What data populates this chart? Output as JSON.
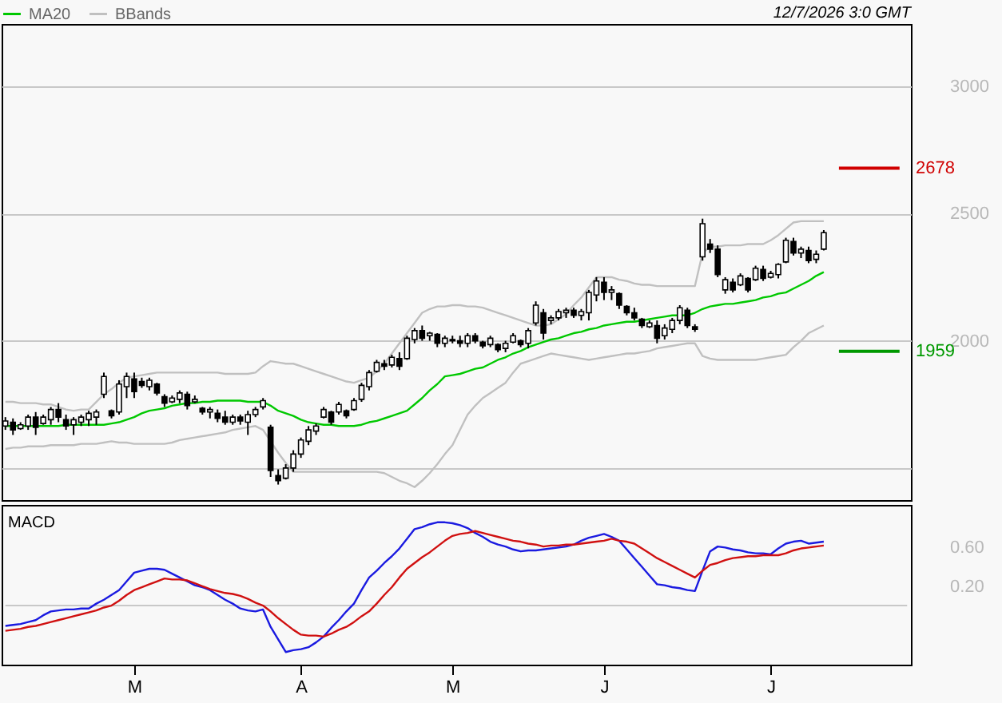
{
  "chart_data": [
    {
      "type": "candlestick",
      "legend": "top left",
      "grid": "y",
      "tick_labels": "y",
      "annotations": [
        "12/7/2026 3:0 GMT"
      ],
      "categories": [
        null,
        null,
        null,
        null,
        null,
        null,
        null,
        null,
        null,
        null,
        null,
        null,
        null,
        null,
        null,
        null,
        null,
        null,
        null,
        null,
        null,
        null,
        null,
        null,
        null,
        null,
        null,
        null,
        null,
        null,
        null,
        null,
        null,
        null,
        null,
        null,
        null,
        null,
        null,
        null,
        null,
        null,
        null,
        null,
        null,
        null,
        null,
        null,
        null,
        null,
        null,
        null,
        null,
        null,
        null,
        null,
        null,
        null,
        null,
        null,
        null,
        null,
        null,
        null,
        null,
        null,
        null,
        null,
        null,
        null,
        null,
        null,
        null,
        null,
        null,
        null,
        null,
        null,
        null,
        null,
        null,
        null,
        null,
        null,
        null,
        null,
        null,
        null,
        null,
        null,
        null,
        null,
        null,
        null,
        null,
        null,
        null,
        null,
        null,
        null,
        null,
        null,
        null,
        null,
        null,
        null,
        null,
        null,
        null,
        null,
        null,
        null,
        null,
        null,
        null,
        null,
        null,
        null,
        null,
        null
      ],
      "ylim": [
        1374,
        3245
      ],
      "yticks": [
        {
          "value": 1500,
          "label": null
        },
        2000,
        2500,
        3000
      ],
      "ohlc": [
        [
          1665,
          1700,
          1650,
          1685
        ],
        [
          1680,
          1695,
          1630,
          1650
        ],
        [
          1655,
          1680,
          1650,
          1670
        ],
        [
          1665,
          1710,
          1650,
          1700
        ],
        [
          1700,
          1720,
          1630,
          1660
        ],
        [
          1675,
          1710,
          1670,
          1700
        ],
        [
          1690,
          1740,
          1670,
          1730
        ],
        [
          1730,
          1755,
          1680,
          1700
        ],
        [
          1690,
          1710,
          1650,
          1665
        ],
        [
          1670,
          1700,
          1630,
          1690
        ],
        [
          1680,
          1710,
          1665,
          1700
        ],
        [
          1690,
          1725,
          1665,
          1715
        ],
        [
          1700,
          1730,
          1670,
          1720
        ],
        [
          1790,
          1875,
          1775,
          1860
        ],
        [
          1725,
          1730,
          1695,
          1705
        ],
        [
          1720,
          1845,
          1710,
          1830
        ],
        [
          1820,
          1875,
          1775,
          1860
        ],
        [
          1850,
          1875,
          1775,
          1800
        ],
        [
          1840,
          1855,
          1815,
          1825
        ],
        [
          1820,
          1855,
          1805,
          1845
        ],
        [
          1830,
          1835,
          1785,
          1795
        ],
        [
          1780,
          1790,
          1740,
          1755
        ],
        [
          1760,
          1785,
          1755,
          1775
        ],
        [
          1770,
          1805,
          1755,
          1795
        ],
        [
          1790,
          1800,
          1730,
          1745
        ],
        [
          1760,
          1785,
          1755,
          1770
        ],
        [
          1735,
          1740,
          1710,
          1720
        ],
        [
          1720,
          1740,
          1695,
          1730
        ],
        [
          1715,
          1730,
          1680,
          1695
        ],
        [
          1700,
          1725,
          1670,
          1680
        ],
        [
          1680,
          1710,
          1670,
          1700
        ],
        [
          1700,
          1710,
          1670,
          1685
        ],
        [
          1680,
          1725,
          1630,
          1710
        ],
        [
          1710,
          1740,
          1700,
          1730
        ],
        [
          1740,
          1775,
          1730,
          1765
        ],
        [
          1660,
          1670,
          1465,
          1490
        ],
        [
          1470,
          1495,
          1435,
          1450
        ],
        [
          1460,
          1515,
          1455,
          1500
        ],
        [
          1500,
          1570,
          1485,
          1555
        ],
        [
          1555,
          1620,
          1540,
          1610
        ],
        [
          1605,
          1665,
          1590,
          1650
        ],
        [
          1645,
          1675,
          1630,
          1665
        ],
        [
          1700,
          1740,
          1695,
          1730
        ],
        [
          1720,
          1725,
          1670,
          1680
        ],
        [
          1720,
          1760,
          1710,
          1750
        ],
        [
          1725,
          1730,
          1695,
          1705
        ],
        [
          1730,
          1775,
          1725,
          1765
        ],
        [
          1770,
          1835,
          1760,
          1825
        ],
        [
          1820,
          1885,
          1805,
          1875
        ],
        [
          1880,
          1925,
          1875,
          1915
        ],
        [
          1910,
          1925,
          1885,
          1900
        ],
        [
          1905,
          1945,
          1895,
          1935
        ],
        [
          1930,
          1955,
          1885,
          1900
        ],
        [
          1930,
          2020,
          1925,
          2010
        ],
        [
          2005,
          2050,
          1990,
          2040
        ],
        [
          2040,
          2060,
          2000,
          2010
        ],
        [
          2020,
          2035,
          2000,
          2030
        ],
        [
          2025,
          2030,
          1975,
          1990
        ],
        [
          1990,
          2020,
          1975,
          2010
        ],
        [
          2005,
          2020,
          1990,
          2000
        ],
        [
          2000,
          2020,
          1975,
          1990
        ],
        [
          1990,
          2030,
          1975,
          2020
        ],
        [
          2020,
          2030,
          1990,
          2000
        ],
        [
          1995,
          2000,
          1970,
          1980
        ],
        [
          1985,
          2020,
          1975,
          2010
        ],
        [
          1985,
          1990,
          1955,
          1965
        ],
        [
          1970,
          2000,
          1955,
          1990
        ],
        [
          1995,
          2030,
          1990,
          2020
        ],
        [
          2000,
          2005,
          1975,
          1985
        ],
        [
          1990,
          2050,
          1970,
          2040
        ],
        [
          2070,
          2155,
          2060,
          2140
        ],
        [
          2110,
          2125,
          2005,
          2030
        ],
        [
          2080,
          2100,
          2065,
          2090
        ],
        [
          2090,
          2125,
          2080,
          2115
        ],
        [
          2110,
          2130,
          2090,
          2120
        ],
        [
          2120,
          2130,
          2090,
          2100
        ],
        [
          2100,
          2125,
          2080,
          2115
        ],
        [
          2110,
          2200,
          2080,
          2190
        ],
        [
          2180,
          2250,
          2155,
          2235
        ],
        [
          2230,
          2250,
          2160,
          2190
        ],
        [
          2190,
          2215,
          2160,
          2200
        ],
        [
          2185,
          2190,
          2125,
          2140
        ],
        [
          2135,
          2140,
          2100,
          2110
        ],
        [
          2110,
          2130,
          2080,
          2090
        ],
        [
          2085,
          2090,
          2050,
          2060
        ],
        [
          2055,
          2080,
          2050,
          2070
        ],
        [
          2060,
          2080,
          1990,
          2010
        ],
        [
          2020,
          2065,
          2005,
          2050
        ],
        [
          2045,
          2090,
          2030,
          2080
        ],
        [
          2080,
          2140,
          2065,
          2130
        ],
        [
          2120,
          2130,
          2050,
          2060
        ],
        [
          2055,
          2065,
          2035,
          2045
        ],
        [
          2330,
          2480,
          2315,
          2460
        ],
        [
          2380,
          2400,
          2345,
          2360
        ],
        [
          2360,
          2375,
          2250,
          2260
        ],
        [
          2200,
          2250,
          2185,
          2240
        ],
        [
          2230,
          2245,
          2190,
          2200
        ],
        [
          2220,
          2265,
          2215,
          2255
        ],
        [
          2245,
          2250,
          2190,
          2200
        ],
        [
          2240,
          2295,
          2235,
          2285
        ],
        [
          2280,
          2295,
          2235,
          2245
        ],
        [
          2250,
          2275,
          2245,
          2265
        ],
        [
          2260,
          2305,
          2245,
          2300
        ],
        [
          2310,
          2405,
          2305,
          2395
        ],
        [
          2390,
          2405,
          2335,
          2345
        ],
        [
          2345,
          2370,
          2325,
          2360
        ],
        [
          2355,
          2370,
          2305,
          2315
        ],
        [
          2320,
          2355,
          2305,
          2340
        ],
        [
          2360,
          2435,
          2355,
          2425
        ],
        null,
        null,
        null,
        null,
        null,
        null,
        null,
        null,
        null,
        null,
        null
      ],
      "series": [
        {
          "type": "line",
          "name": "MA20",
          "color": "#00c800",
          "values": [
            1665,
            1665,
            1665,
            1665,
            1665,
            1665,
            1665,
            1665,
            1670,
            1670,
            1670,
            1670,
            1670,
            1670,
            1675,
            1680,
            1690,
            1700,
            1715,
            1725,
            1730,
            1735,
            1745,
            1750,
            1755,
            1755,
            1760,
            1760,
            1765,
            1765,
            1765,
            1765,
            1760,
            1760,
            1760,
            1745,
            1725,
            1715,
            1705,
            1690,
            1680,
            1675,
            1670,
            1670,
            1665,
            1665,
            1665,
            1670,
            1680,
            1685,
            1695,
            1705,
            1715,
            1725,
            1750,
            1775,
            1805,
            1830,
            1860,
            1865,
            1870,
            1880,
            1890,
            1895,
            1910,
            1925,
            1935,
            1950,
            1960,
            1975,
            1985,
            1995,
            2005,
            2010,
            2020,
            2030,
            2035,
            2045,
            2050,
            2060,
            2065,
            2070,
            2075,
            2075,
            2080,
            2085,
            2090,
            2095,
            2100,
            2100,
            2100,
            2110,
            2125,
            2135,
            2140,
            2145,
            2145,
            2150,
            2155,
            2160,
            2170,
            2175,
            2185,
            2190,
            2205,
            2220,
            2235,
            2255,
            2270,
            null,
            null,
            null,
            null,
            null,
            null,
            null,
            null,
            null,
            null,
            null
          ]
        },
        {
          "type": "line",
          "name": "BBands",
          "color": "#c0c0c0",
          "values": [
            1760,
            1760,
            1755,
            1755,
            1755,
            1750,
            1750,
            1740,
            1730,
            1725,
            1730,
            1730,
            1760,
            1790,
            1810,
            1835,
            1855,
            1860,
            1865,
            1870,
            1875,
            1875,
            1875,
            1875,
            1875,
            1875,
            1875,
            1875,
            1875,
            1870,
            1870,
            1870,
            1870,
            1875,
            1900,
            1920,
            1915,
            1910,
            1910,
            1900,
            1890,
            1880,
            1870,
            1860,
            1850,
            1840,
            1835,
            1845,
            1855,
            1880,
            1910,
            1950,
            1990,
            2030,
            2070,
            2110,
            2125,
            2135,
            2135,
            2140,
            2140,
            2135,
            2135,
            2130,
            2120,
            2110,
            2100,
            2090,
            2080,
            2070,
            2060,
            2060,
            2065,
            2085,
            2105,
            2140,
            2170,
            2210,
            2250,
            2250,
            2250,
            2240,
            2235,
            2225,
            2220,
            2220,
            2215,
            2215,
            2215,
            2215,
            2215,
            2215,
            2345,
            2370,
            2370,
            2375,
            2375,
            2375,
            2380,
            2380,
            2380,
            2395,
            2415,
            2440,
            2465,
            2470,
            2470,
            2470,
            2470,
            null,
            null,
            null,
            null,
            null,
            null,
            null,
            null,
            null,
            null,
            null
          ]
        },
        {
          "type": "line",
          "color": "#c0c0c0",
          "values": [
            1575,
            1580,
            1580,
            1585,
            1585,
            1585,
            1590,
            1590,
            1590,
            1590,
            1595,
            1595,
            1595,
            1600,
            1605,
            1600,
            1600,
            1595,
            1595,
            1595,
            1595,
            1595,
            1600,
            1610,
            1615,
            1620,
            1625,
            1630,
            1635,
            1640,
            1650,
            1655,
            1660,
            1665,
            1650,
            1605,
            1560,
            1520,
            1485,
            1485,
            1485,
            1485,
            1485,
            1485,
            1485,
            1485,
            1485,
            1485,
            1485,
            1485,
            1480,
            1465,
            1450,
            1440,
            1425,
            1450,
            1480,
            1515,
            1555,
            1590,
            1650,
            1710,
            1745,
            1775,
            1795,
            1815,
            1835,
            1875,
            1910,
            1920,
            1930,
            1940,
            1950,
            1945,
            1940,
            1935,
            1930,
            1925,
            1930,
            1935,
            1940,
            1945,
            1950,
            1950,
            1955,
            1960,
            1970,
            1975,
            1980,
            1985,
            1990,
            1990,
            1940,
            1930,
            1925,
            1925,
            1925,
            1925,
            1925,
            1925,
            1930,
            1935,
            1940,
            1945,
            1975,
            2000,
            2030,
            2045,
            2060,
            null,
            null,
            null,
            null,
            null,
            null,
            null,
            null,
            null,
            null,
            null
          ]
        }
      ],
      "ref_lines": [
        {
          "axis": "y",
          "value": 2678,
          "label": "2678",
          "color": "#d00000"
        },
        {
          "axis": "y",
          "value": 1959,
          "label": "1959",
          "color": "#009900"
        }
      ]
    },
    {
      "type": "line",
      "title": "MACD",
      "categories": [
        null,
        null,
        null,
        null,
        null,
        null,
        null,
        null,
        null,
        null,
        null,
        null,
        null,
        null,
        null,
        null,
        null,
        "M",
        null,
        null,
        null,
        null,
        null,
        null,
        null,
        null,
        null,
        null,
        null,
        null,
        null,
        null,
        null,
        null,
        null,
        null,
        null,
        null,
        null,
        "A",
        null,
        null,
        null,
        null,
        null,
        null,
        null,
        null,
        null,
        null,
        null,
        null,
        null,
        null,
        null,
        null,
        null,
        null,
        null,
        "M",
        null,
        null,
        null,
        null,
        null,
        null,
        null,
        null,
        null,
        null,
        null,
        null,
        null,
        null,
        null,
        null,
        null,
        null,
        null,
        "J",
        null,
        null,
        null,
        null,
        null,
        null,
        null,
        null,
        null,
        null,
        null,
        null,
        null,
        null,
        null,
        null,
        null,
        null,
        null,
        null,
        null,
        "J",
        null,
        null,
        null,
        null,
        null,
        null,
        null,
        null,
        null,
        null,
        null,
        null,
        null,
        null,
        null,
        null,
        null,
        null
      ],
      "ylim": [
        -0.61,
        1.04
      ],
      "yticks": [
        {
          "value": 0.2,
          "label": "0.20"
        },
        {
          "value": 0.6,
          "label": "0.60"
        }
      ],
      "series": [
        {
          "color": "#1a1ae0",
          "values": [
            -0.21,
            -0.2,
            -0.19,
            -0.17,
            -0.15,
            -0.1,
            -0.06,
            -0.05,
            -0.04,
            -0.04,
            -0.03,
            -0.03,
            0.02,
            0.06,
            0.11,
            0.16,
            0.25,
            0.34,
            0.36,
            0.38,
            0.38,
            0.37,
            0.33,
            0.29,
            0.25,
            0.21,
            0.19,
            0.16,
            0.11,
            0.06,
            0.02,
            -0.03,
            -0.05,
            -0.06,
            -0.04,
            -0.22,
            -0.35,
            -0.48,
            -0.46,
            -0.45,
            -0.43,
            -0.38,
            -0.32,
            -0.23,
            -0.15,
            -0.06,
            0.02,
            0.16,
            0.29,
            0.36,
            0.44,
            0.51,
            0.59,
            0.69,
            0.79,
            0.81,
            0.84,
            0.86,
            0.86,
            0.85,
            0.83,
            0.8,
            0.75,
            0.71,
            0.66,
            0.63,
            0.61,
            0.58,
            0.56,
            0.57,
            0.57,
            0.58,
            0.59,
            0.6,
            0.61,
            0.63,
            0.67,
            0.7,
            0.72,
            0.74,
            0.71,
            0.67,
            0.58,
            0.49,
            0.4,
            0.31,
            0.22,
            0.21,
            0.19,
            0.18,
            0.16,
            0.15,
            0.36,
            0.56,
            0.61,
            0.6,
            0.58,
            0.57,
            0.55,
            0.54,
            0.54,
            0.53,
            0.59,
            0.64,
            0.66,
            0.67,
            0.64,
            0.65,
            0.66,
            null,
            null,
            null,
            null,
            null,
            null,
            null,
            null,
            null,
            null,
            null
          ]
        },
        {
          "color": "#d01010",
          "values": [
            -0.26,
            -0.25,
            -0.24,
            -0.22,
            -0.21,
            -0.19,
            -0.17,
            -0.15,
            -0.13,
            -0.11,
            -0.09,
            -0.07,
            -0.05,
            -0.02,
            0.0,
            0.05,
            0.11,
            0.16,
            0.19,
            0.22,
            0.25,
            0.28,
            0.27,
            0.27,
            0.26,
            0.23,
            0.2,
            0.17,
            0.15,
            0.13,
            0.12,
            0.1,
            0.07,
            0.03,
            0.0,
            -0.06,
            -0.13,
            -0.19,
            -0.25,
            -0.3,
            -0.31,
            -0.31,
            -0.32,
            -0.29,
            -0.25,
            -0.22,
            -0.17,
            -0.11,
            -0.06,
            0.02,
            0.11,
            0.19,
            0.29,
            0.38,
            0.44,
            0.5,
            0.55,
            0.61,
            0.67,
            0.72,
            0.74,
            0.75,
            0.77,
            0.75,
            0.73,
            0.71,
            0.69,
            0.67,
            0.66,
            0.64,
            0.63,
            0.61,
            0.62,
            0.62,
            0.63,
            0.63,
            0.64,
            0.65,
            0.66,
            0.67,
            0.69,
            0.67,
            0.66,
            0.64,
            0.59,
            0.54,
            0.49,
            0.45,
            0.41,
            0.37,
            0.33,
            0.29,
            0.36,
            0.42,
            0.44,
            0.47,
            0.49,
            0.5,
            0.51,
            0.51,
            0.52,
            0.52,
            0.52,
            0.54,
            0.57,
            0.59,
            0.6,
            0.61,
            0.62,
            null,
            null,
            null,
            null,
            null,
            null,
            null,
            null,
            null,
            null,
            null
          ]
        }
      ],
      "ref_lines": [
        {
          "axis": "y",
          "value": 0,
          "color": "#c8c8c8"
        }
      ]
    }
  ]
}
